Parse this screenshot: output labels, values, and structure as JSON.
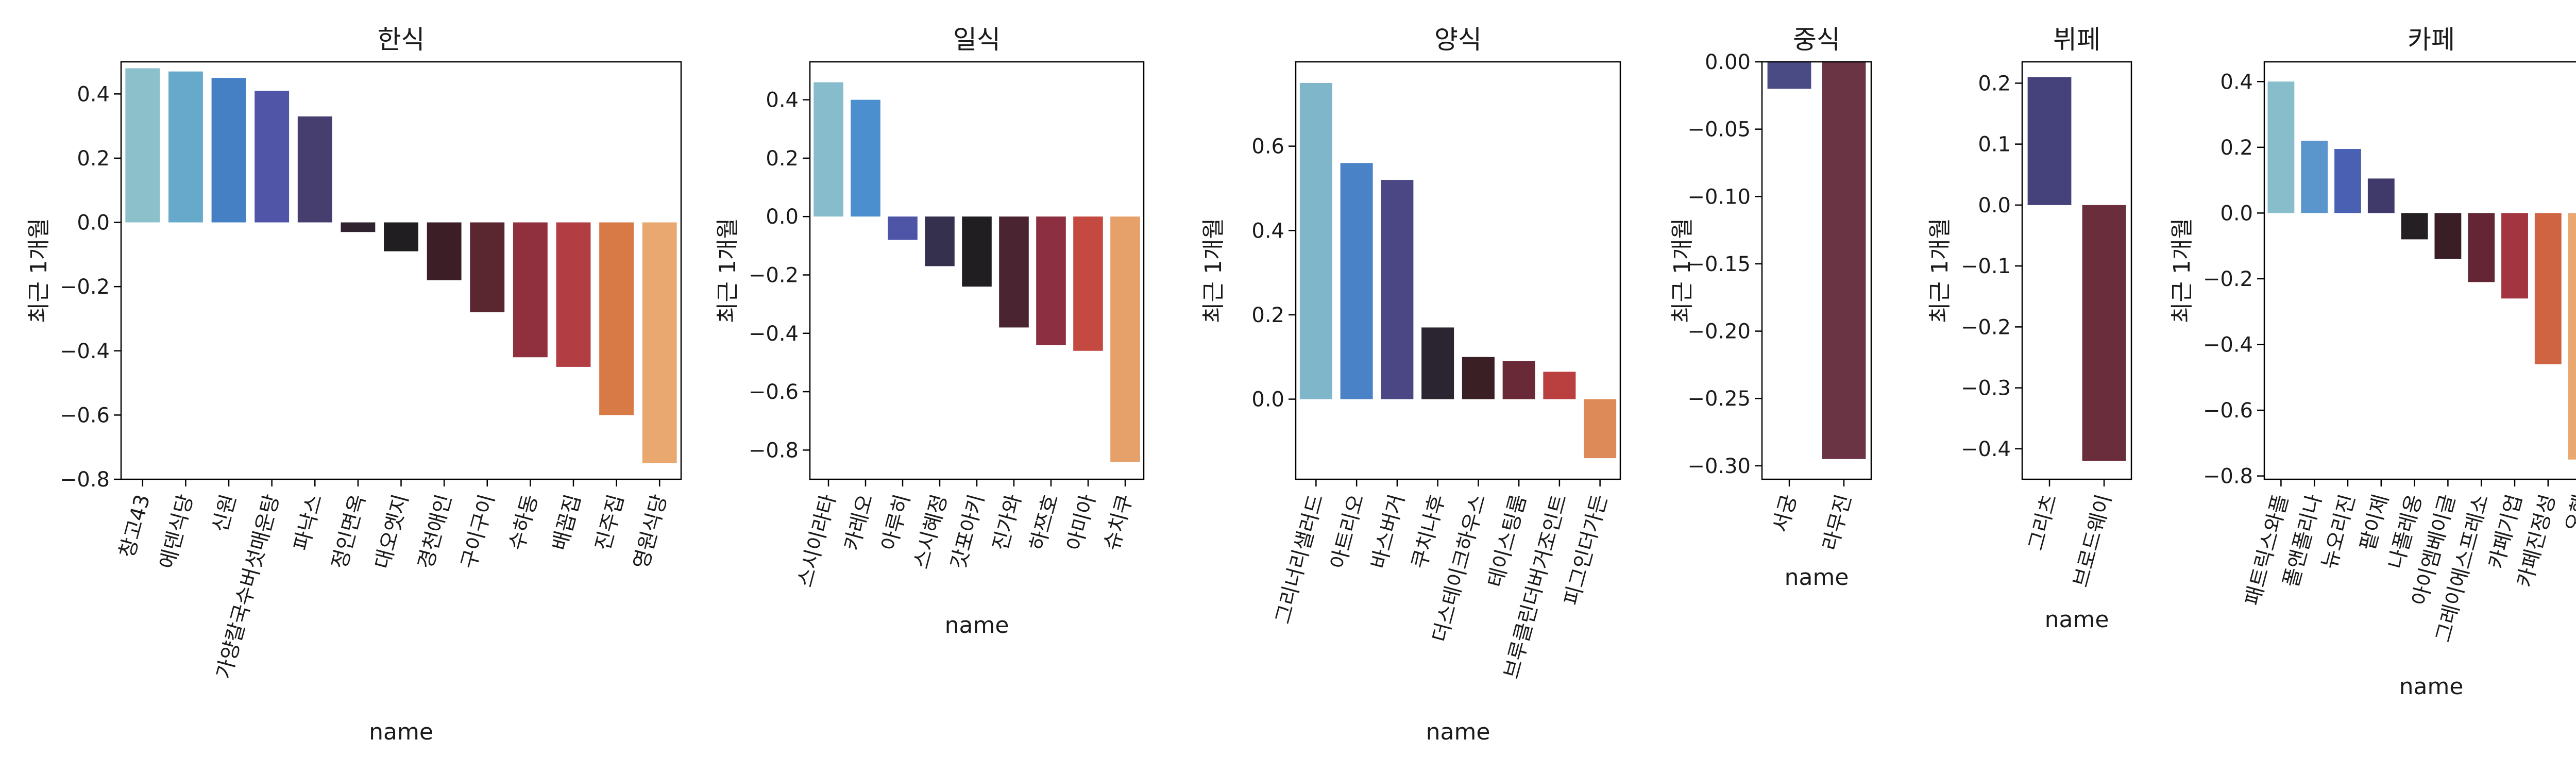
{
  "chart_data": [
    {
      "type": "bar",
      "title": "한식",
      "xlabel": "name",
      "ylabel": "최근 1개월",
      "ylim": [
        -0.8,
        0.5
      ],
      "yticks": [
        -0.8,
        -0.6,
        -0.4,
        -0.2,
        0.0,
        0.2,
        0.4
      ],
      "categories": [
        "창고43",
        "에덴식당",
        "신원",
        "가양칼국수버섯매운탕",
        "파낙스",
        "정인면옥",
        "대오엣지",
        "경천애인",
        "구이구이",
        "수하동",
        "배꼽집",
        "진주집",
        "영원식당"
      ],
      "values": [
        0.48,
        0.47,
        0.45,
        0.41,
        0.33,
        -0.03,
        -0.09,
        -0.18,
        -0.28,
        -0.42,
        -0.45,
        -0.6,
        -0.75
      ],
      "colors": [
        "#8cc0ca",
        "#66a9cb",
        "#4580c5",
        "#5055a8",
        "#463e6f",
        "#2f2330",
        "#201e20",
        "#3c1f26",
        "#5a2731",
        "#90303e",
        "#b23e44",
        "#d87a46",
        "#e8a870"
      ]
    },
    {
      "type": "bar",
      "title": "일식",
      "xlabel": "name",
      "ylabel": "최근 1개월",
      "ylim": [
        -0.9,
        0.53
      ],
      "yticks": [
        -0.8,
        -0.6,
        -0.4,
        -0.2,
        0.0,
        0.2,
        0.4
      ],
      "categories": [
        "스시이라타",
        "카레오",
        "아루히",
        "스시혜정",
        "갓포아키",
        "진가와",
        "하쯔호",
        "아미아",
        "슈치쿠"
      ],
      "values": [
        0.46,
        0.4,
        -0.08,
        -0.17,
        -0.24,
        -0.38,
        -0.44,
        -0.46,
        -0.84
      ],
      "colors": [
        "#86bccc",
        "#4b8fce",
        "#4e55a7",
        "#35304e",
        "#201e20",
        "#4a2430",
        "#8b2f41",
        "#c44a41",
        "#e6a06a"
      ]
    },
    {
      "type": "bar",
      "title": "양식",
      "xlabel": "name",
      "ylabel": "최근 1개월",
      "ylim": [
        -0.19,
        0.8
      ],
      "yticks": [
        0.0,
        0.2,
        0.4,
        0.6
      ],
      "categories": [
        "그리너리샐러드",
        "아트리오",
        "바스버거",
        "쿠치나후",
        "더스테이크하우스",
        "테이스팅룸",
        "브루클린더버거조인트",
        "피그인더가든"
      ],
      "values": [
        0.75,
        0.56,
        0.52,
        0.17,
        0.1,
        0.09,
        0.065,
        -0.14
      ],
      "colors": [
        "#80b6ca",
        "#4a82c8",
        "#4a4784",
        "#2a2530",
        "#3a1f24",
        "#6a2936",
        "#ba403f",
        "#dd8a58"
      ]
    },
    {
      "type": "bar",
      "title": "중식",
      "xlabel": "name",
      "ylabel": "최근 1개월",
      "ylim": [
        -0.31,
        0.0
      ],
      "yticks": [
        -0.3,
        -0.25,
        -0.2,
        -0.15,
        -0.1,
        -0.05,
        0.0
      ],
      "tick_labels": [
        "−0.30",
        "−0.25",
        "−0.20",
        "−0.15",
        "−0.10",
        "−0.05",
        "0.00"
      ],
      "categories": [
        "서궁",
        "라무진"
      ],
      "values": [
        -0.02,
        -0.295
      ],
      "colors": [
        "#4a4a85",
        "#6a3444"
      ]
    },
    {
      "type": "bar",
      "title": "뷔페",
      "xlabel": "name",
      "ylabel": "최근 1개월",
      "ylim": [
        -0.45,
        0.235
      ],
      "yticks": [
        -0.4,
        -0.3,
        -0.2,
        -0.1,
        0.0,
        0.1,
        0.2
      ],
      "categories": [
        "그리츠",
        "브로드웨이"
      ],
      "values": [
        0.21,
        -0.42
      ],
      "colors": [
        "#45427b",
        "#6a2d3c"
      ]
    },
    {
      "type": "bar",
      "title": "카페",
      "xlabel": "name",
      "ylabel": "최근 1개월",
      "ylim": [
        -0.81,
        0.46
      ],
      "yticks": [
        -0.8,
        -0.6,
        -0.4,
        -0.2,
        0.0,
        0.2,
        0.4
      ],
      "categories": [
        "패트릭스와플",
        "폴앤폴리나",
        "뉴오리진",
        "팥이제",
        "나폴레옹",
        "아이엠베이글",
        "그레이에스프레소",
        "카페기업",
        "카페진정성",
        "오헨"
      ],
      "values": [
        0.4,
        0.22,
        0.195,
        0.105,
        -0.08,
        -0.14,
        -0.21,
        -0.26,
        -0.46,
        -0.75
      ],
      "colors": [
        "#88bdcc",
        "#5a96cc",
        "#4a61b3",
        "#3f3a6a",
        "#231f22",
        "#3a1e25",
        "#642634",
        "#a2353f",
        "#cf6443",
        "#e8a870"
      ]
    }
  ]
}
